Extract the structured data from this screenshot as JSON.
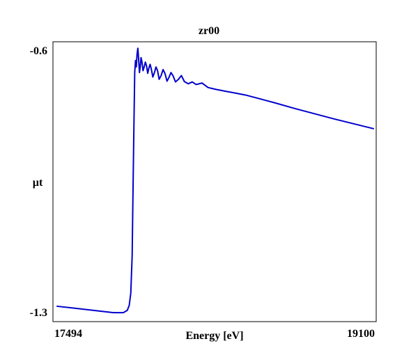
{
  "chart_data": {
    "type": "line",
    "title": "zr00",
    "xlabel": "Energy [eV]",
    "ylabel": "µt",
    "xlim": [
      17494,
      19100
    ],
    "ylim": [
      -1.3,
      -0.6
    ],
    "x_tick_labels": [
      "17494",
      "19100"
    ],
    "y_tick_labels": [
      "-0.6",
      "-1.3"
    ],
    "grid": false,
    "line_color": "#0000cc",
    "series": [
      {
        "x": [
          17494,
          17580,
          17680,
          17780,
          17830,
          17850,
          17860,
          17868,
          17875,
          17880,
          17884,
          17888,
          17892,
          17896,
          17900,
          17904,
          17908,
          17912,
          17916,
          17920,
          17925,
          17930,
          17936,
          17942,
          17948,
          17954,
          17960,
          17966,
          17972,
          17980,
          17988,
          17996,
          18004,
          18012,
          18022,
          18032,
          18042,
          18052,
          18062,
          18072,
          18082,
          18095,
          18110,
          18125,
          18140,
          18160,
          18180,
          18200,
          18230,
          18260,
          18300,
          18350,
          18400,
          18450,
          18500,
          18600,
          18700,
          18800,
          18900,
          19000,
          19100
        ],
        "y": [
          -1.285,
          -1.29,
          -1.296,
          -1.302,
          -1.302,
          -1.296,
          -1.283,
          -1.25,
          -1.15,
          -0.95,
          -0.8,
          -0.66,
          -0.628,
          -0.645,
          -0.61,
          -0.595,
          -0.625,
          -0.66,
          -0.645,
          -0.62,
          -0.632,
          -0.655,
          -0.645,
          -0.632,
          -0.642,
          -0.662,
          -0.648,
          -0.638,
          -0.65,
          -0.672,
          -0.66,
          -0.645,
          -0.655,
          -0.678,
          -0.668,
          -0.652,
          -0.663,
          -0.683,
          -0.673,
          -0.66,
          -0.668,
          -0.685,
          -0.678,
          -0.668,
          -0.684,
          -0.69,
          -0.685,
          -0.692,
          -0.688,
          -0.7,
          -0.705,
          -0.71,
          -0.715,
          -0.72,
          -0.727,
          -0.741,
          -0.756,
          -0.77,
          -0.784,
          -0.797,
          -0.81
        ]
      }
    ]
  }
}
